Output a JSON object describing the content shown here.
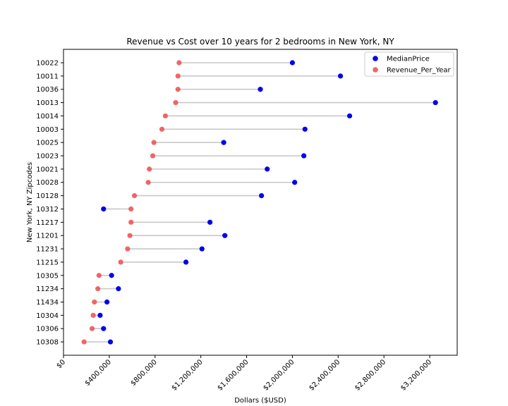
{
  "chart_data": {
    "type": "dumbbell",
    "title": "Revenue vs Cost over 10 years for 2 bedrooms in New York, NY",
    "xlabel": "Dollars ($USD)",
    "ylabel": "New York, NY Zipcodes",
    "xlim": [
      0,
      3440000
    ],
    "xticks": [
      {
        "value": 0,
        "label": "$0"
      },
      {
        "value": 400000,
        "label": "$400,000"
      },
      {
        "value": 800000,
        "label": "$800,000"
      },
      {
        "value": 1200000,
        "label": "$1,200,000"
      },
      {
        "value": 1600000,
        "label": "$1,600,000"
      },
      {
        "value": 2000000,
        "label": "$2,000,000"
      },
      {
        "value": 2400000,
        "label": "$2,400,000"
      },
      {
        "value": 2800000,
        "label": "$2,800,000"
      },
      {
        "value": 3200000,
        "label": "$3,200,000"
      }
    ],
    "categories": [
      "10022",
      "10011",
      "10036",
      "10013",
      "10014",
      "10003",
      "10025",
      "10023",
      "10021",
      "10028",
      "10128",
      "10312",
      "11217",
      "11201",
      "11231",
      "11215",
      "10305",
      "11234",
      "11434",
      "10304",
      "10306",
      "10308"
    ],
    "series": [
      {
        "name": "MedianPrice",
        "color": "#0000ee",
        "values": [
          2000000,
          2420000,
          1720000,
          3250000,
          2500000,
          2110000,
          1400000,
          2100000,
          1780000,
          2020000,
          1730000,
          350000,
          1280000,
          1410000,
          1210000,
          1070000,
          420000,
          480000,
          380000,
          320000,
          350000,
          410000
        ]
      },
      {
        "name": "Revenue_Per_Year",
        "color": "#ee5555",
        "values": [
          1010000,
          1000000,
          1000000,
          980000,
          890000,
          860000,
          790000,
          780000,
          750000,
          740000,
          620000,
          590000,
          590000,
          580000,
          560000,
          500000,
          310000,
          300000,
          270000,
          260000,
          250000,
          180000
        ]
      }
    ],
    "connector_color": "#c8c8c8",
    "legend_position": "top-right",
    "grid": false
  }
}
